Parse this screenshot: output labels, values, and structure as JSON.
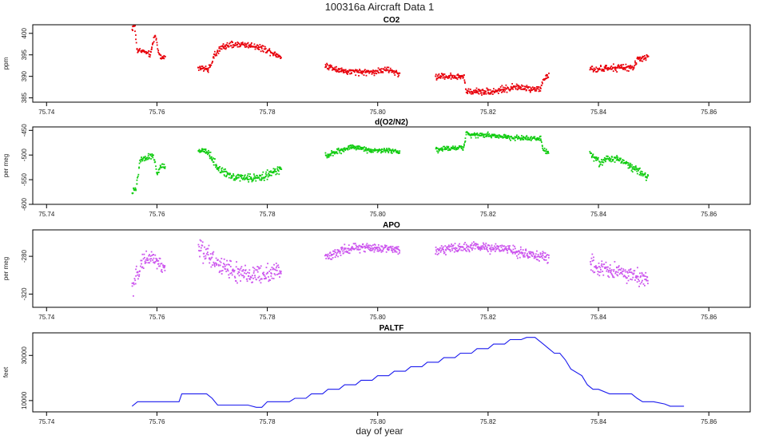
{
  "title": "100316a   Aircraft Data 1",
  "xlabel": "day of year",
  "chart_data": [
    {
      "type": "scatter",
      "title": "CO2",
      "ylabel": "ppm",
      "color": "#e8000b",
      "xlim": [
        75.7375,
        75.8675
      ],
      "ylim": [
        384,
        402
      ],
      "x_ticks": [
        "75.74",
        "75.76",
        "75.78",
        "75.80",
        "75.82",
        "75.84",
        "75.86"
      ],
      "y_ticks": [
        {
          "value": 385,
          "label": "385"
        },
        {
          "value": 390,
          "label": "390"
        },
        {
          "value": 395,
          "label": "395"
        },
        {
          "value": 400,
          "label": "400"
        }
      ],
      "segments": [
        {
          "x0": 75.7555,
          "x1": 75.7615,
          "noise": 0.5,
          "profile": [
            [
              0,
              401
            ],
            [
              0.08,
              402
            ],
            [
              0.15,
              396
            ],
            [
              0.3,
              396
            ],
            [
              0.55,
              395
            ],
            [
              0.7,
              400
            ],
            [
              0.78,
              396
            ],
            [
              0.9,
              394
            ],
            [
              1,
              395
            ]
          ]
        },
        {
          "x0": 75.7675,
          "x1": 75.7825,
          "noise": 0.6,
          "profile": [
            [
              0,
              392
            ],
            [
              0.12,
              391.5
            ],
            [
              0.2,
              395
            ],
            [
              0.3,
              397
            ],
            [
              0.5,
              397.5
            ],
            [
              0.7,
              397
            ],
            [
              0.85,
              396
            ],
            [
              1,
              394.5
            ]
          ]
        },
        {
          "x0": 75.7905,
          "x1": 75.804,
          "noise": 0.6,
          "profile": [
            [
              0,
              392.5
            ],
            [
              0.3,
              391
            ],
            [
              0.6,
              391
            ],
            [
              0.85,
              391.5
            ],
            [
              1,
              390.5
            ]
          ]
        },
        {
          "x0": 75.8105,
          "x1": 75.831,
          "noise": 0.6,
          "profile": [
            [
              0,
              390
            ],
            [
              0.25,
              390
            ],
            [
              0.27,
              386.5
            ],
            [
              0.5,
              386.5
            ],
            [
              0.7,
              387.5
            ],
            [
              0.93,
              387
            ],
            [
              0.95,
              389.5
            ],
            [
              1,
              390
            ]
          ]
        },
        {
          "x0": 75.8385,
          "x1": 75.849,
          "noise": 0.6,
          "profile": [
            [
              0,
              391.5
            ],
            [
              0.5,
              392
            ],
            [
              0.75,
              392
            ],
            [
              0.82,
              394
            ],
            [
              1,
              394.5
            ]
          ]
        }
      ]
    },
    {
      "type": "scatter",
      "title": "d(O2/N2)",
      "ylabel": "per meg",
      "color": "#11cc11",
      "xlim": [
        75.7375,
        75.8675
      ],
      "ylim": [
        -600,
        -443
      ],
      "x_ticks": [
        "75.74",
        "75.76",
        "75.78",
        "75.80",
        "75.82",
        "75.84",
        "75.86"
      ],
      "y_ticks": [
        {
          "value": -600,
          "label": "-600"
        },
        {
          "value": -550,
          "label": "-550"
        },
        {
          "value": -500,
          "label": "-500"
        },
        {
          "value": -450,
          "label": "-450"
        }
      ],
      "segments": [
        {
          "x0": 75.7555,
          "x1": 75.7615,
          "noise": 5,
          "profile": [
            [
              0,
              -575
            ],
            [
              0.12,
              -570
            ],
            [
              0.25,
              -510
            ],
            [
              0.5,
              -505
            ],
            [
              0.65,
              -500
            ],
            [
              0.75,
              -540
            ],
            [
              0.88,
              -520
            ],
            [
              1,
              -525
            ]
          ]
        },
        {
          "x0": 75.7675,
          "x1": 75.7825,
          "noise": 6,
          "profile": [
            [
              0,
              -490
            ],
            [
              0.12,
              -495
            ],
            [
              0.25,
              -530
            ],
            [
              0.45,
              -545
            ],
            [
              0.7,
              -547
            ],
            [
              0.85,
              -540
            ],
            [
              1,
              -527
            ]
          ]
        },
        {
          "x0": 75.7905,
          "x1": 75.804,
          "noise": 4,
          "profile": [
            [
              0,
              -502
            ],
            [
              0.35,
              -483
            ],
            [
              0.6,
              -490
            ],
            [
              1,
              -492
            ]
          ]
        },
        {
          "x0": 75.8105,
          "x1": 75.831,
          "noise": 4,
          "profile": [
            [
              0,
              -490
            ],
            [
              0.25,
              -484
            ],
            [
              0.27,
              -458
            ],
            [
              0.5,
              -460
            ],
            [
              0.7,
              -465
            ],
            [
              0.93,
              -466
            ],
            [
              0.95,
              -490
            ],
            [
              1,
              -493
            ]
          ]
        },
        {
          "x0": 75.8385,
          "x1": 75.849,
          "noise": 6,
          "profile": [
            [
              0,
              -495
            ],
            [
              0.15,
              -515
            ],
            [
              0.45,
              -505
            ],
            [
              0.75,
              -525
            ],
            [
              1,
              -545
            ]
          ]
        }
      ]
    },
    {
      "type": "scatter",
      "title": "APO",
      "ylabel": "per meg",
      "color": "#cc55ee",
      "xlim": [
        75.7375,
        75.8675
      ],
      "ylim": [
        -334,
        -252
      ],
      "x_ticks": [
        "75.74",
        "75.76",
        "75.78",
        "75.80",
        "75.82",
        "75.84",
        "75.86"
      ],
      "y_ticks": [
        {
          "value": -320,
          "label": "-320"
        },
        {
          "value": -280,
          "label": "-280"
        }
      ],
      "segments": [
        {
          "x0": 75.7555,
          "x1": 75.7615,
          "noise": 7,
          "profile": [
            [
              0,
              -315
            ],
            [
              0.3,
              -285
            ],
            [
              0.6,
              -280
            ],
            [
              1,
              -295
            ]
          ]
        },
        {
          "x0": 75.7675,
          "x1": 75.7825,
          "noise": 9,
          "profile": [
            [
              0,
              -270
            ],
            [
              0.2,
              -285
            ],
            [
              0.5,
              -300
            ],
            [
              0.75,
              -300
            ],
            [
              1,
              -295
            ]
          ]
        },
        {
          "x0": 75.7905,
          "x1": 75.804,
          "noise": 4,
          "profile": [
            [
              0,
              -280
            ],
            [
              0.4,
              -270
            ],
            [
              1,
              -273
            ]
          ]
        },
        {
          "x0": 75.8105,
          "x1": 75.831,
          "noise": 4,
          "profile": [
            [
              0,
              -273
            ],
            [
              0.3,
              -270
            ],
            [
              0.6,
              -272
            ],
            [
              1,
              -282
            ]
          ]
        },
        {
          "x0": 75.8385,
          "x1": 75.849,
          "noise": 8,
          "profile": [
            [
              0,
              -290
            ],
            [
              0.4,
              -295
            ],
            [
              1,
              -305
            ]
          ]
        }
      ]
    },
    {
      "type": "line",
      "title": "PALTF",
      "ylabel": "feet",
      "color": "#1a1aee",
      "xlim": [
        75.7375,
        75.8675
      ],
      "ylim": [
        5000,
        40000
      ],
      "x_ticks": [
        "75.74",
        "75.76",
        "75.78",
        "75.80",
        "75.82",
        "75.84",
        "75.86"
      ],
      "y_ticks": [
        {
          "value": 10000,
          "label": "10000"
        },
        {
          "value": 30000,
          "label": "30000"
        }
      ],
      "x": [
        75.7555,
        75.7565,
        75.764,
        75.7645,
        75.769,
        75.77,
        75.771,
        75.7765,
        75.778,
        75.779,
        75.78,
        75.784,
        75.785,
        75.787,
        75.788,
        75.79,
        75.791,
        75.793,
        75.794,
        75.796,
        75.797,
        75.799,
        75.8,
        75.802,
        75.803,
        75.805,
        75.806,
        75.808,
        75.809,
        75.811,
        75.812,
        75.814,
        75.815,
        75.817,
        75.818,
        75.82,
        75.821,
        75.823,
        75.824,
        75.826,
        75.827,
        75.8285,
        75.83,
        75.831,
        75.832,
        75.833,
        75.834,
        75.835,
        75.837,
        75.838,
        75.839,
        75.84,
        75.842,
        75.844,
        75.846,
        75.847,
        75.848,
        75.85,
        75.852,
        75.853,
        75.8555
      ],
      "y": [
        7500,
        9500,
        9500,
        13000,
        13000,
        11000,
        8000,
        8000,
        7000,
        7000,
        9500,
        9500,
        11000,
        11000,
        13000,
        13000,
        15000,
        15000,
        17000,
        17000,
        19000,
        19000,
        21000,
        21000,
        23000,
        23000,
        25000,
        25000,
        27000,
        27000,
        29000,
        29000,
        31000,
        31000,
        33000,
        33000,
        35000,
        35000,
        37000,
        37000,
        38000,
        38000,
        35000,
        33000,
        31000,
        31000,
        28000,
        24000,
        21000,
        17000,
        15000,
        15000,
        13000,
        13000,
        13000,
        11000,
        9500,
        9500,
        8500,
        7500,
        7500
      ]
    }
  ]
}
